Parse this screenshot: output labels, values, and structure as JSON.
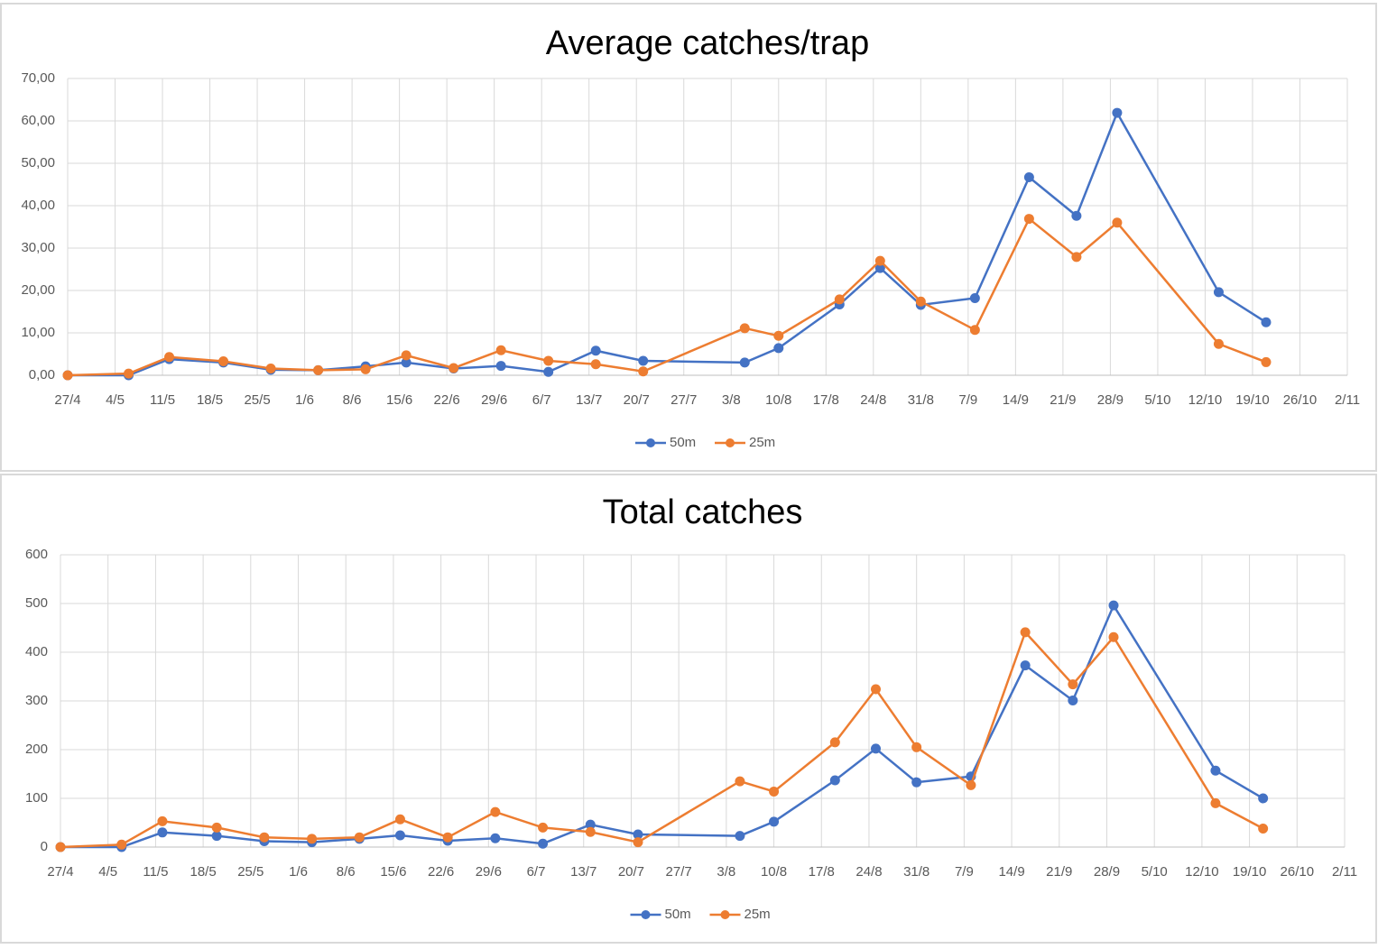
{
  "chart_data": [
    {
      "type": "line",
      "title": "Average catches/trap",
      "x": [
        0,
        9,
        15,
        23,
        30,
        37,
        44,
        50,
        57,
        64,
        71,
        78,
        85,
        100,
        105,
        114,
        120,
        126,
        134,
        142,
        149,
        155,
        170,
        177
      ],
      "xlim": [
        0,
        189
      ],
      "xticks": [
        {
          "value": 0,
          "label": "27/4"
        },
        {
          "value": 7,
          "label": "4/5"
        },
        {
          "value": 14,
          "label": "11/5"
        },
        {
          "value": 21,
          "label": "18/5"
        },
        {
          "value": 28,
          "label": "25/5"
        },
        {
          "value": 35,
          "label": "1/6"
        },
        {
          "value": 42,
          "label": "8/6"
        },
        {
          "value": 49,
          "label": "15/6"
        },
        {
          "value": 56,
          "label": "22/6"
        },
        {
          "value": 63,
          "label": "29/6"
        },
        {
          "value": 70,
          "label": "6/7"
        },
        {
          "value": 77,
          "label": "13/7"
        },
        {
          "value": 84,
          "label": "20/7"
        },
        {
          "value": 91,
          "label": "27/7"
        },
        {
          "value": 98,
          "label": "3/8"
        },
        {
          "value": 105,
          "label": "10/8"
        },
        {
          "value": 112,
          "label": "17/8"
        },
        {
          "value": 119,
          "label": "24/8"
        },
        {
          "value": 126,
          "label": "31/8"
        },
        {
          "value": 133,
          "label": "7/9"
        },
        {
          "value": 140,
          "label": "14/9"
        },
        {
          "value": 147,
          "label": "21/9"
        },
        {
          "value": 154,
          "label": "28/9"
        },
        {
          "value": 161,
          "label": "5/10"
        },
        {
          "value": 168,
          "label": "12/10"
        },
        {
          "value": 175,
          "label": "19/10"
        },
        {
          "value": 182,
          "label": "26/10"
        },
        {
          "value": 189,
          "label": "2/11"
        }
      ],
      "ylim": [
        0,
        70
      ],
      "yticks": [
        {
          "value": 0,
          "label": "0,00"
        },
        {
          "value": 10,
          "label": "10,00"
        },
        {
          "value": 20,
          "label": "20,00"
        },
        {
          "value": 30,
          "label": "30,00"
        },
        {
          "value": 40,
          "label": "40,00"
        },
        {
          "value": 50,
          "label": "50,00"
        },
        {
          "value": 60,
          "label": "60,00"
        },
        {
          "value": 70,
          "label": "70,00"
        }
      ],
      "grid": true,
      "legend": "bottom",
      "series": [
        {
          "name": "50m",
          "color": "#4472c4",
          "values": [
            0,
            0,
            3.8,
            3.0,
            1.3,
            1.2,
            2.1,
            3.0,
            1.6,
            2.2,
            0.8,
            5.8,
            3.4,
            3.0,
            6.4,
            16.7,
            25.3,
            16.6,
            18.2,
            46.7,
            37.6,
            61.9,
            19.6,
            12.5
          ]
        },
        {
          "name": "25m",
          "color": "#ed7d31",
          "values": [
            0,
            0.4,
            4.3,
            3.3,
            1.6,
            1.2,
            1.4,
            4.7,
            1.7,
            5.9,
            3.4,
            2.6,
            0.9,
            11.1,
            9.3,
            17.9,
            27.0,
            17.4,
            10.7,
            36.9,
            27.9,
            36.0,
            7.4,
            3.1
          ]
        }
      ]
    },
    {
      "type": "line",
      "title": "Total catches",
      "x": [
        0,
        9,
        15,
        23,
        30,
        37,
        44,
        50,
        57,
        64,
        71,
        78,
        85,
        100,
        105,
        114,
        120,
        126,
        134,
        142,
        149,
        155,
        170,
        177
      ],
      "xlim": [
        0,
        189
      ],
      "xticks": [
        {
          "value": 0,
          "label": "27/4"
        },
        {
          "value": 7,
          "label": "4/5"
        },
        {
          "value": 14,
          "label": "11/5"
        },
        {
          "value": 21,
          "label": "18/5"
        },
        {
          "value": 28,
          "label": "25/5"
        },
        {
          "value": 35,
          "label": "1/6"
        },
        {
          "value": 42,
          "label": "8/6"
        },
        {
          "value": 49,
          "label": "15/6"
        },
        {
          "value": 56,
          "label": "22/6"
        },
        {
          "value": 63,
          "label": "29/6"
        },
        {
          "value": 70,
          "label": "6/7"
        },
        {
          "value": 77,
          "label": "13/7"
        },
        {
          "value": 84,
          "label": "20/7"
        },
        {
          "value": 91,
          "label": "27/7"
        },
        {
          "value": 98,
          "label": "3/8"
        },
        {
          "value": 105,
          "label": "10/8"
        },
        {
          "value": 112,
          "label": "17/8"
        },
        {
          "value": 119,
          "label": "24/8"
        },
        {
          "value": 126,
          "label": "31/8"
        },
        {
          "value": 133,
          "label": "7/9"
        },
        {
          "value": 140,
          "label": "14/9"
        },
        {
          "value": 147,
          "label": "21/9"
        },
        {
          "value": 154,
          "label": "28/9"
        },
        {
          "value": 161,
          "label": "5/10"
        },
        {
          "value": 168,
          "label": "12/10"
        },
        {
          "value": 175,
          "label": "19/10"
        },
        {
          "value": 182,
          "label": "26/10"
        },
        {
          "value": 189,
          "label": "2/11"
        }
      ],
      "ylim": [
        0,
        600
      ],
      "yticks": [
        0,
        100,
        200,
        300,
        400,
        500,
        600
      ],
      "grid": true,
      "legend": "bottom",
      "series": [
        {
          "name": "50m",
          "color": "#4472c4",
          "values": [
            0,
            0,
            30,
            23,
            12,
            10,
            17,
            24,
            13,
            18,
            7,
            46,
            26,
            23,
            52,
            137,
            202,
            133,
            145,
            373,
            301,
            496,
            157,
            100
          ]
        },
        {
          "name": "25m",
          "color": "#ed7d31",
          "values": [
            0,
            5,
            53,
            40,
            20,
            17,
            20,
            57,
            20,
            72,
            40,
            31,
            10,
            135,
            114,
            215,
            324,
            205,
            127,
            441,
            334,
            431,
            90,
            38
          ]
        }
      ]
    }
  ]
}
